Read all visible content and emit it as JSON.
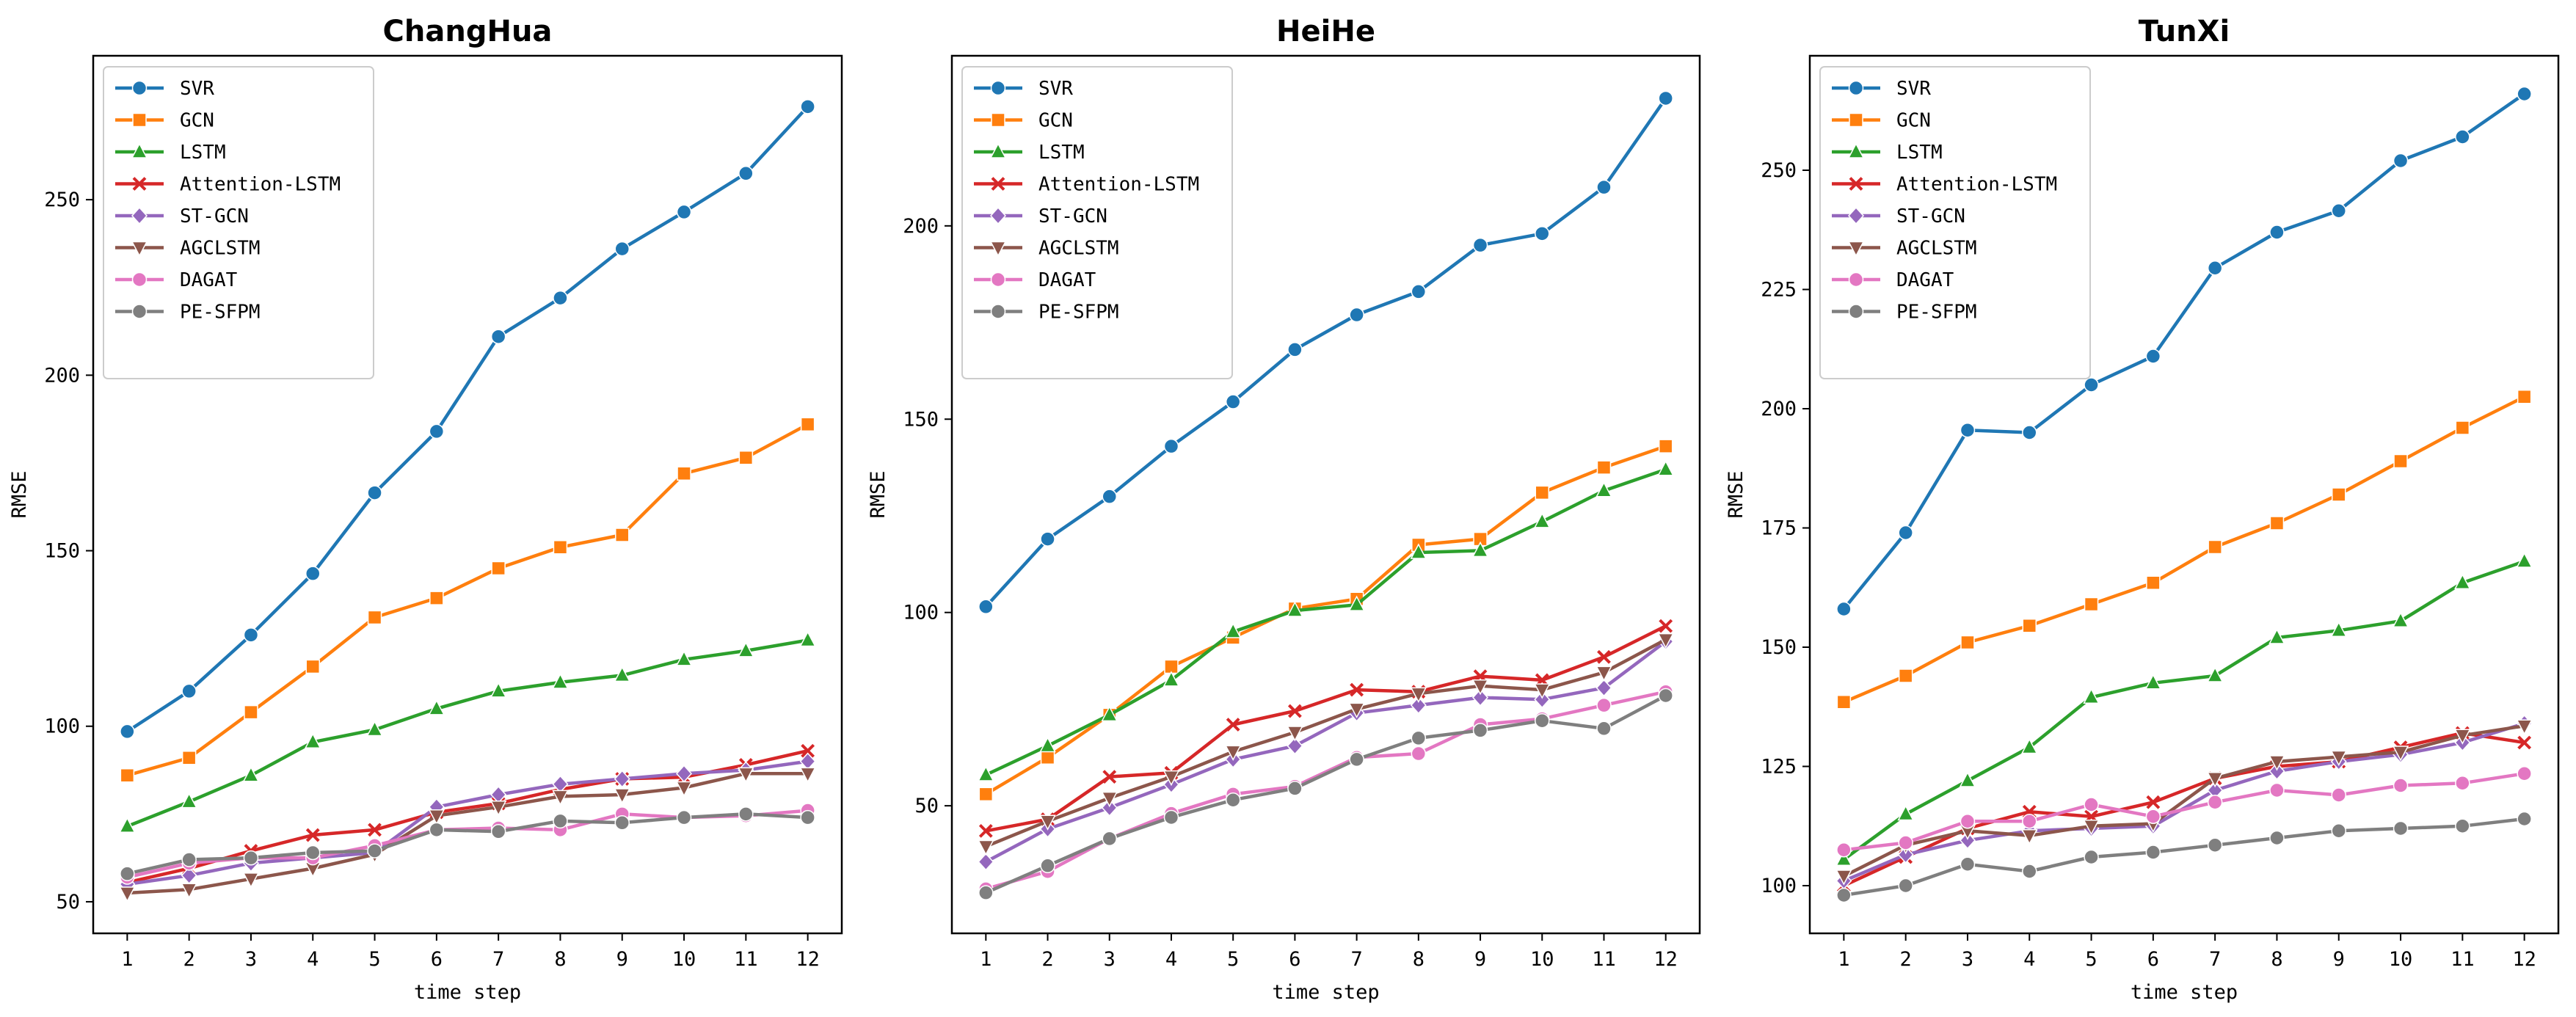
{
  "chart_data": [
    {
      "type": "line",
      "title": "ChangHua",
      "xlabel": "time step",
      "ylabel": "RMSE",
      "x": [
        1,
        2,
        3,
        4,
        5,
        6,
        7,
        8,
        9,
        10,
        11,
        12
      ],
      "ylim": [
        41,
        291
      ],
      "yticks": [
        50,
        100,
        150,
        200,
        250
      ],
      "legend": "upper-left",
      "grid": false,
      "series": [
        {
          "name": "SVR",
          "color": "#1f77b4",
          "marker": "circle",
          "values": [
            98.5,
            110,
            126,
            143.5,
            166.5,
            184,
            211,
            222,
            236,
            246.5,
            257.5,
            276.5
          ]
        },
        {
          "name": "GCN",
          "color": "#ff7f0e",
          "marker": "square",
          "values": [
            86,
            91,
            104,
            117,
            131,
            136.5,
            145,
            151,
            154.5,
            172,
            176.5,
            186
          ]
        },
        {
          "name": "LSTM",
          "color": "#2ca02c",
          "marker": "triangle-up",
          "values": [
            71.5,
            78.5,
            86,
            95.5,
            99,
            105,
            110,
            112.5,
            114.5,
            119,
            121.5,
            124.5
          ]
        },
        {
          "name": "Attention-LSTM",
          "color": "#d62728",
          "marker": "x",
          "values": [
            55.5,
            59.5,
            64.5,
            69,
            70.5,
            75.5,
            78,
            82,
            85,
            85.5,
            89,
            93
          ]
        },
        {
          "name": "ST-GCN",
          "color": "#9467bd",
          "marker": "diamond",
          "values": [
            55,
            57.5,
            61,
            62.5,
            64,
            77,
            80.5,
            83.5,
            85,
            86.5,
            87.5,
            90
          ]
        },
        {
          "name": "AGCLSTM",
          "color": "#8c564b",
          "marker": "triangle-down",
          "values": [
            52.5,
            53.5,
            56.5,
            59.5,
            63.5,
            74.5,
            77,
            80,
            80.5,
            82.5,
            86.5,
            86.5
          ]
        },
        {
          "name": "DAGAT",
          "color": "#e377c2",
          "marker": "circle",
          "values": [
            57,
            61,
            62.5,
            62.5,
            66,
            70.5,
            71,
            70.5,
            75,
            74,
            74.5,
            76
          ]
        },
        {
          "name": "PE-SFPM",
          "color": "#7f7f7f",
          "marker": "circle",
          "values": [
            58,
            62,
            62.5,
            64,
            64.5,
            70.5,
            70,
            73,
            72.5,
            74,
            75,
            74
          ]
        }
      ]
    },
    {
      "type": "line",
      "title": "HeiHe",
      "xlabel": "time step",
      "ylabel": "RMSE",
      "x": [
        1,
        2,
        3,
        4,
        5,
        6,
        7,
        8,
        9,
        10,
        11,
        12
      ],
      "ylim": [
        17,
        244
      ],
      "yticks": [
        50,
        100,
        150,
        200
      ],
      "legend": "upper-left",
      "grid": false,
      "series": [
        {
          "name": "SVR",
          "color": "#1f77b4",
          "marker": "circle",
          "values": [
            101.5,
            119,
            130,
            143,
            154.5,
            168,
            177,
            183,
            195,
            198,
            210,
            233
          ]
        },
        {
          "name": "GCN",
          "color": "#ff7f0e",
          "marker": "square",
          "values": [
            53,
            62.5,
            73.5,
            86,
            93.5,
            101,
            103.5,
            117.5,
            119,
            131,
            137.5,
            143
          ]
        },
        {
          "name": "LSTM",
          "color": "#2ca02c",
          "marker": "triangle-up",
          "values": [
            58,
            65.5,
            73.5,
            82.5,
            95,
            100.5,
            102,
            115.5,
            116,
            123.5,
            131.5,
            137
          ]
        },
        {
          "name": "Attention-LSTM",
          "color": "#d62728",
          "marker": "x",
          "values": [
            43.5,
            46.5,
            57.5,
            58.5,
            71,
            74.5,
            80,
            79.5,
            83.5,
            82.5,
            88.5,
            96.5
          ]
        },
        {
          "name": "ST-GCN",
          "color": "#9467bd",
          "marker": "diamond",
          "values": [
            35.5,
            44,
            49.5,
            55.5,
            62,
            65.5,
            74,
            76,
            78,
            77.5,
            80.5,
            92.5
          ]
        },
        {
          "name": "AGCLSTM",
          "color": "#8c564b",
          "marker": "triangle-down",
          "values": [
            39.5,
            46,
            52,
            57.5,
            64,
            69,
            75,
            79,
            81,
            80,
            84.5,
            93
          ]
        },
        {
          "name": "DAGAT",
          "color": "#e377c2",
          "marker": "circle",
          "values": [
            28.5,
            33,
            41.5,
            48,
            53,
            55,
            62.5,
            63.5,
            71,
            72.5,
            76,
            79.5
          ]
        },
        {
          "name": "PE-SFPM",
          "color": "#7f7f7f",
          "marker": "circle",
          "values": [
            27.5,
            34.5,
            41.5,
            47,
            51.5,
            54.5,
            62,
            67.5,
            69.5,
            72,
            70,
            78.5
          ]
        }
      ]
    },
    {
      "type": "line",
      "title": "TunXi",
      "xlabel": "time step",
      "ylabel": "RMSE",
      "x": [
        1,
        2,
        3,
        4,
        5,
        6,
        7,
        8,
        9,
        10,
        11,
        12
      ],
      "ylim": [
        90,
        274
      ],
      "yticks": [
        100,
        125,
        150,
        175,
        200,
        225,
        250
      ],
      "legend": "upper-left",
      "grid": false,
      "series": [
        {
          "name": "SVR",
          "color": "#1f77b4",
          "marker": "circle",
          "values": [
            158,
            174,
            195.5,
            195,
            205,
            211,
            229.5,
            237,
            241.5,
            252,
            257,
            266
          ]
        },
        {
          "name": "GCN",
          "color": "#ff7f0e",
          "marker": "square",
          "values": [
            138.5,
            144,
            151,
            154.5,
            159,
            163.5,
            171,
            176,
            182,
            189,
            196,
            202.5
          ]
        },
        {
          "name": "LSTM",
          "color": "#2ca02c",
          "marker": "triangle-up",
          "values": [
            105.5,
            115,
            122,
            129,
            139.5,
            142.5,
            144,
            152,
            153.5,
            155.5,
            163.5,
            168
          ]
        },
        {
          "name": "Attention-LSTM",
          "color": "#d62728",
          "marker": "x",
          "values": [
            100,
            106,
            112,
            115.5,
            114.5,
            117.5,
            122.5,
            125,
            126,
            129,
            132,
            130
          ]
        },
        {
          "name": "ST-GCN",
          "color": "#9467bd",
          "marker": "diamond",
          "values": [
            101,
            106.5,
            109.5,
            111.5,
            112,
            112.5,
            120,
            124,
            126,
            127.5,
            130,
            134
          ]
        },
        {
          "name": "AGCLSTM",
          "color": "#8c564b",
          "marker": "triangle-down",
          "values": [
            102,
            108.5,
            111.5,
            110.5,
            112.5,
            113,
            122.5,
            126,
            127,
            128,
            131.5,
            133.5
          ]
        },
        {
          "name": "DAGAT",
          "color": "#e377c2",
          "marker": "circle",
          "values": [
            107.5,
            109,
            113.5,
            113.5,
            117,
            114.5,
            117.5,
            120,
            119,
            121,
            121.5,
            123.5
          ]
        },
        {
          "name": "PE-SFPM",
          "color": "#7f7f7f",
          "marker": "circle",
          "values": [
            98,
            100,
            104.5,
            103,
            106,
            107,
            108.5,
            110,
            111.5,
            112,
            112.5,
            114
          ]
        }
      ]
    }
  ]
}
